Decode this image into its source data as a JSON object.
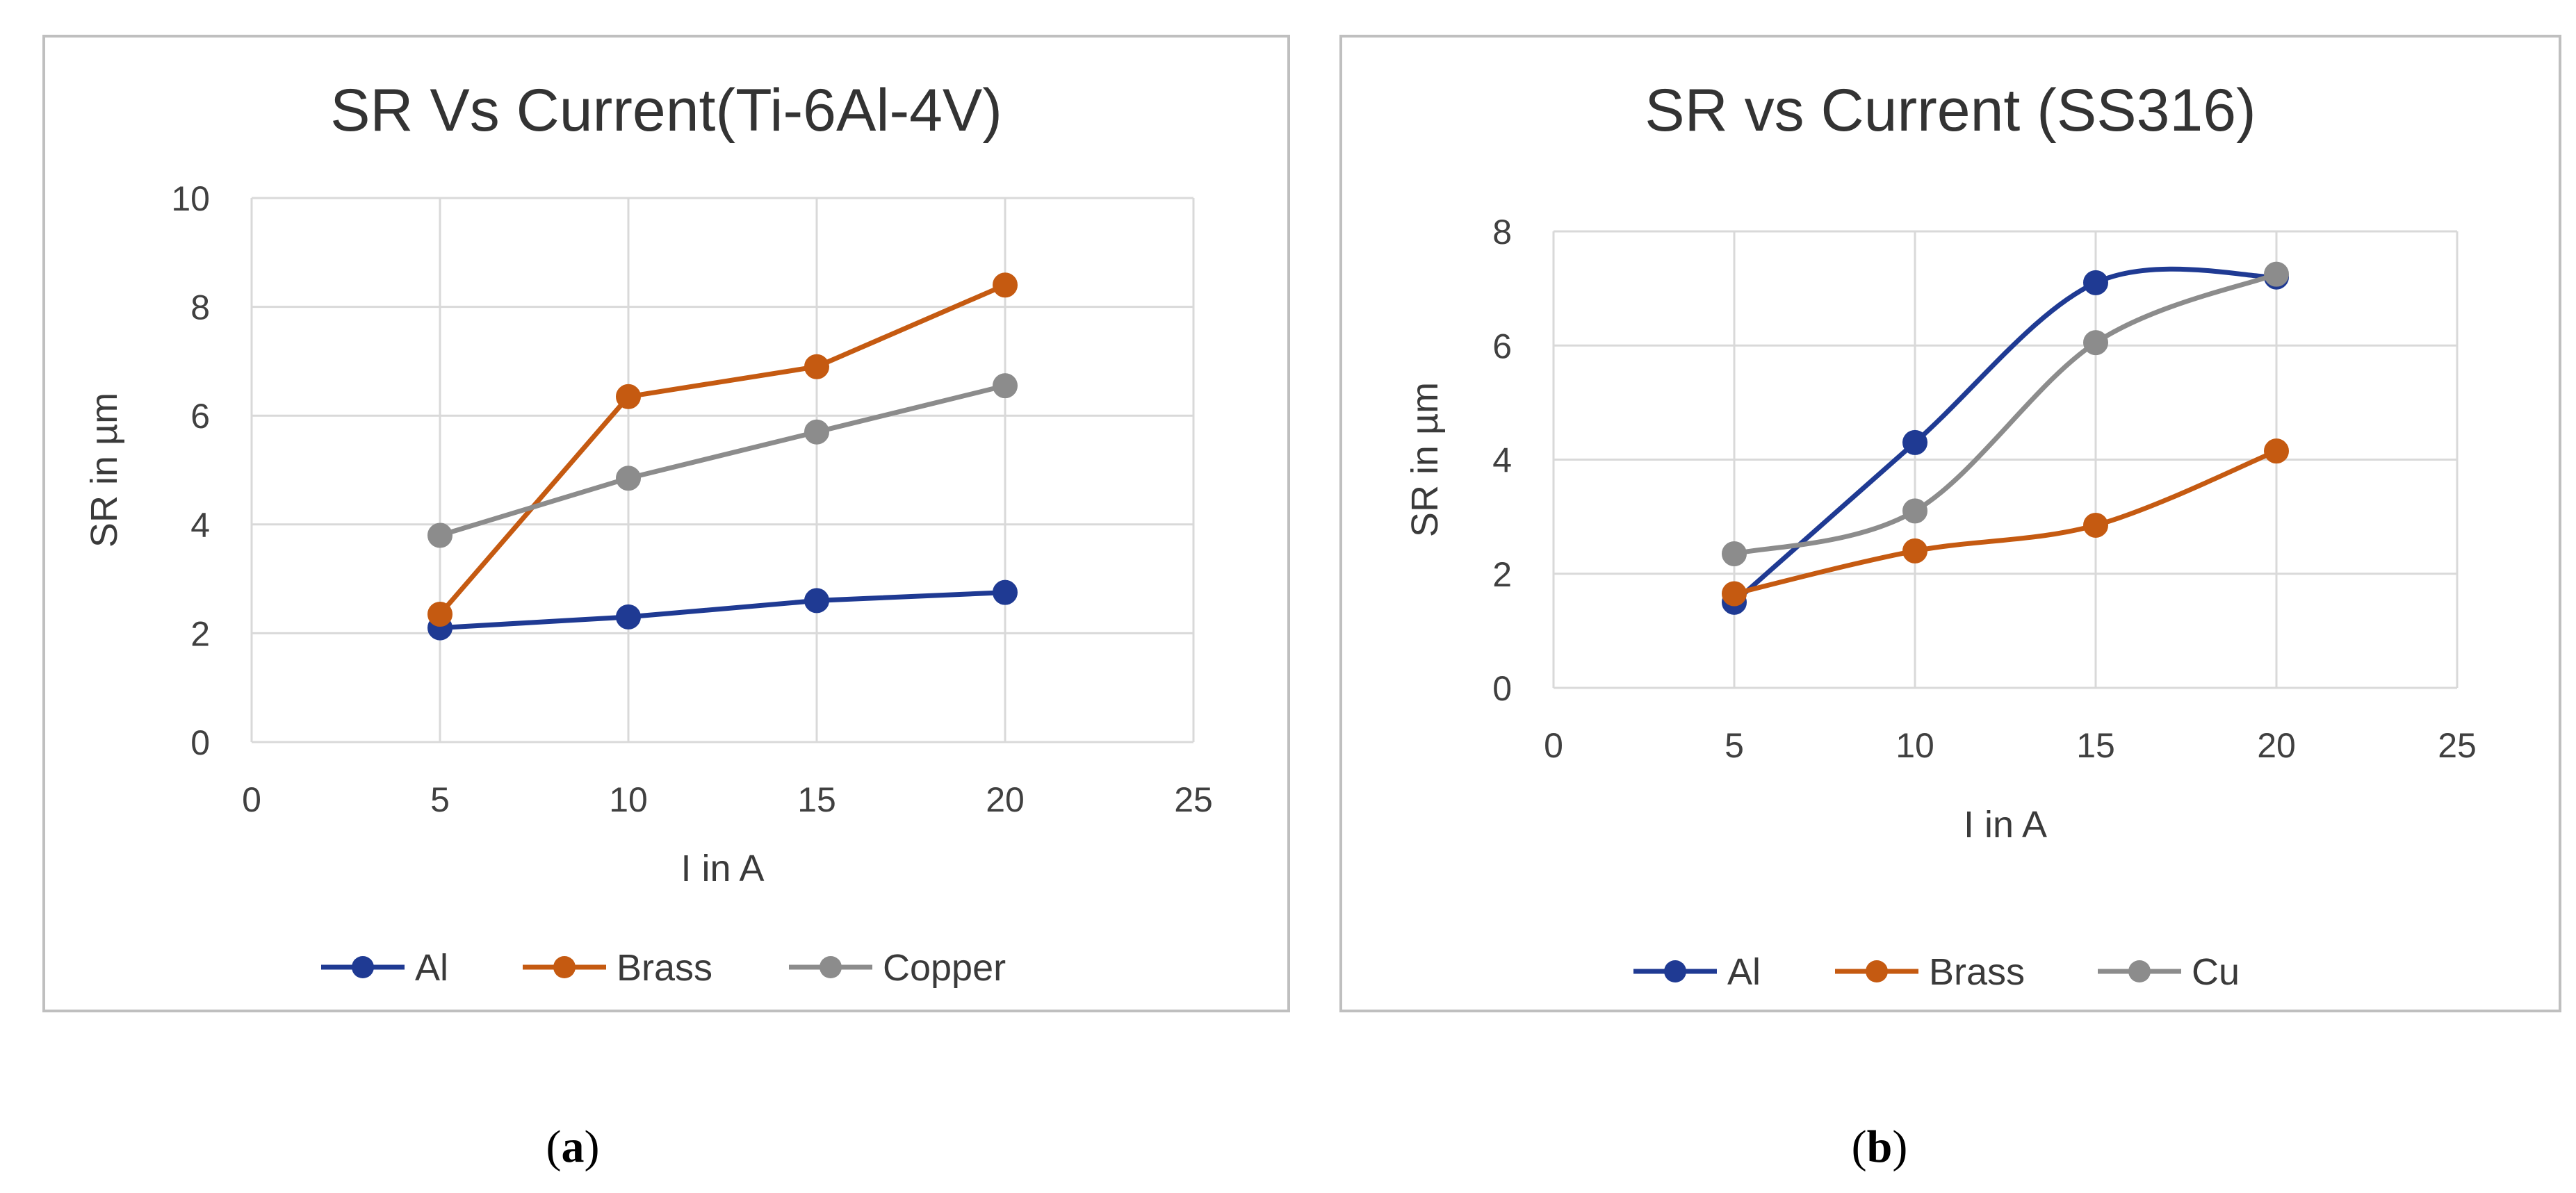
{
  "chart_data": [
    {
      "type": "line",
      "title": "SR Vs Current(Ti-6Al-4V)",
      "xlabel": "I in A",
      "ylabel": "SR in µm",
      "xlim": [
        0,
        25
      ],
      "ylim": [
        0,
        10
      ],
      "xticks": [
        0,
        5,
        10,
        15,
        20,
        25
      ],
      "yticks": [
        0,
        2,
        4,
        6,
        8,
        10
      ],
      "grid": true,
      "legend_position": "bottom",
      "smooth": false,
      "x": [
        5,
        10,
        15,
        20
      ],
      "series": [
        {
          "name": "Al",
          "color": "#1f3a93",
          "values": [
            2.1,
            2.3,
            2.6,
            2.75
          ]
        },
        {
          "name": "Brass",
          "color": "#c55a11",
          "values": [
            2.35,
            6.35,
            6.9,
            8.4
          ]
        },
        {
          "name": "Copper",
          "color": "#8c8c8c",
          "values": [
            3.8,
            4.85,
            5.7,
            6.55
          ]
        }
      ],
      "caption": {
        "open": "(",
        "label": "a",
        "close": ")"
      }
    },
    {
      "type": "line",
      "title": "SR vs Current (SS316)",
      "xlabel": "I in A",
      "ylabel": "SR in µm",
      "xlim": [
        0,
        25
      ],
      "ylim": [
        0,
        8
      ],
      "xticks": [
        0,
        5,
        10,
        15,
        20,
        25
      ],
      "yticks": [
        0,
        2,
        4,
        6,
        8
      ],
      "grid": true,
      "legend_position": "bottom",
      "smooth": true,
      "x": [
        5,
        10,
        15,
        20
      ],
      "series": [
        {
          "name": "Al",
          "color": "#1f3a93",
          "values": [
            1.5,
            4.3,
            7.1,
            7.2
          ]
        },
        {
          "name": "Brass",
          "color": "#c55a11",
          "values": [
            1.65,
            2.4,
            2.85,
            4.15
          ]
        },
        {
          "name": "Cu",
          "color": "#8c8c8c",
          "values": [
            2.35,
            3.1,
            6.05,
            7.25
          ]
        }
      ],
      "caption": {
        "open": "(",
        "label": "b",
        "close": ")"
      }
    }
  ]
}
